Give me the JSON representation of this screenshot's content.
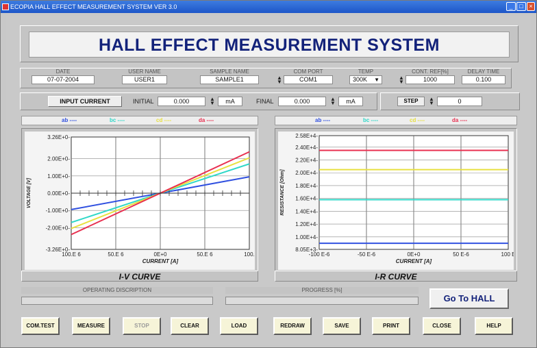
{
  "window": {
    "title": "ECOPIA HALL EFFECT MEASUREMENT SYSTEM VER 3.0"
  },
  "header": {
    "title": "HALL EFFECT MEASUREMENT SYSTEM"
  },
  "info": {
    "date_label": "DATE",
    "date": "07-07-2004",
    "user_label": "USER NAME",
    "user": "USER1",
    "sample_label": "SAMPLE NAME",
    "sample": "SAMPLE1",
    "com_label": "COM PORT",
    "com": "COM1",
    "temp_label": "TEMP",
    "temp": "300K",
    "cont_label": "CONT. REF[%]",
    "cont": "1000",
    "delay_label": "DELAY TIME",
    "delay": "0.100"
  },
  "current": {
    "button": "INPUT CURRENT",
    "initial_label": "INITIAL",
    "initial": "0.000",
    "initial_unit": "mA",
    "final_label": "FINAL",
    "final": "0.000",
    "final_unit": "mA",
    "step_label": "STEP",
    "step": "0"
  },
  "legend": {
    "ab": "ab ----",
    "bc": "bc ----",
    "cd": "cd ----",
    "da": "da ----"
  },
  "colors": {
    "ab": "#3050e0",
    "bc": "#30d8c8",
    "cd": "#e8e040",
    "da": "#e83050"
  },
  "iv_chart": {
    "type": "line",
    "title": "I-V CURVE",
    "xlabel": "CURRENT [A]",
    "ylabel": "VOLTAGE [V]",
    "x_ticks": [
      "100.E 6",
      "50.E 6",
      "0E+0",
      "50.E 6",
      "100."
    ],
    "y_ticks": [
      "3.26E+0-",
      "2.00E+0-",
      "1.00E+0-",
      "0.00E+0-",
      "-1.00E+0-",
      "-2.00E+0-",
      "-3.26E+0-"
    ],
    "y_tick_values": [
      3.26,
      2.0,
      1.0,
      0.0,
      -1.0,
      -2.0,
      -3.26
    ],
    "xlim": [
      -100,
      100
    ],
    "ylim": [
      -3.26,
      3.26
    ],
    "series": [
      {
        "name": "ab",
        "x": [
          -100,
          100
        ],
        "y": [
          -0.95,
          0.95
        ]
      },
      {
        "name": "bc",
        "x": [
          -100,
          100
        ],
        "y": [
          -1.7,
          1.7
        ]
      },
      {
        "name": "cd",
        "x": [
          -100,
          100
        ],
        "y": [
          -2.05,
          2.05
        ]
      },
      {
        "name": "da",
        "x": [
          -100,
          100
        ],
        "y": [
          -2.4,
          2.4
        ]
      }
    ]
  },
  "ir_chart": {
    "type": "line",
    "title": "I-R CURVE",
    "xlabel": "CURRENT [A]",
    "ylabel": "RESISTANCE [Ohm]",
    "x_ticks": [
      "-100 E-6",
      "-50 E-6",
      "0E+0",
      "50 E-6",
      "100 E"
    ],
    "y_ticks": [
      "2.58E+4-",
      "2.40E+4-",
      "2.20E+4-",
      "2.00E+4-",
      "1.80E+4-",
      "1.60E+4-",
      "1.40E+4-",
      "1.20E+4-",
      "1.00E+4-",
      "8.05E+3-"
    ],
    "y_tick_values": [
      25800,
      24000,
      22000,
      20000,
      18000,
      16000,
      14000,
      12000,
      10000,
      8050
    ],
    "xlim": [
      -100,
      100
    ],
    "ylim": [
      8050,
      25800
    ],
    "series": [
      {
        "name": "ab",
        "x": [
          -100,
          100
        ],
        "y": [
          9000,
          9000
        ]
      },
      {
        "name": "bc",
        "x": [
          -100,
          100
        ],
        "y": [
          15800,
          15800
        ]
      },
      {
        "name": "cd",
        "x": [
          -100,
          100
        ],
        "y": [
          20500,
          20500
        ]
      },
      {
        "name": "da",
        "x": [
          -100,
          100
        ],
        "y": [
          23500,
          23500
        ]
      }
    ]
  },
  "status": {
    "op_label": "OPERATING DISCRIPTION",
    "progress_label": "PROGRESS [%]",
    "hall_button": "Go To HALL"
  },
  "buttons": [
    "COM.TEST",
    "MEASURE",
    "STOP",
    "CLEAR",
    "LOAD",
    "REDRAW",
    "SAVE",
    "PRINT",
    "CLOSE",
    "HELP"
  ]
}
